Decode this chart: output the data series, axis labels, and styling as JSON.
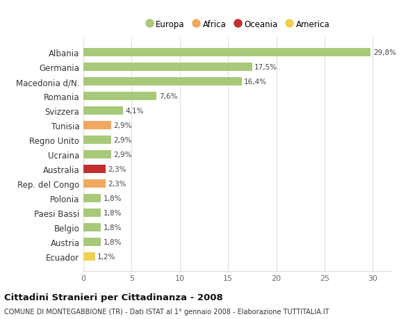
{
  "categories": [
    "Albania",
    "Germania",
    "Macedonia d/N.",
    "Romania",
    "Svizzera",
    "Tunisia",
    "Regno Unito",
    "Ucraina",
    "Australia",
    "Rep. del Congo",
    "Polonia",
    "Paesi Bassi",
    "Belgio",
    "Austria",
    "Ecuador"
  ],
  "values": [
    29.8,
    17.5,
    16.4,
    7.6,
    4.1,
    2.9,
    2.9,
    2.9,
    2.3,
    2.3,
    1.8,
    1.8,
    1.8,
    1.8,
    1.2
  ],
  "labels": [
    "29,8%",
    "17,5%",
    "16,4%",
    "7,6%",
    "4,1%",
    "2,9%",
    "2,9%",
    "2,9%",
    "2,3%",
    "2,3%",
    "1,8%",
    "1,8%",
    "1,8%",
    "1,8%",
    "1,2%"
  ],
  "colors": [
    "#a8c87a",
    "#a8c87a",
    "#a8c87a",
    "#a8c87a",
    "#a8c87a",
    "#f0a860",
    "#a8c87a",
    "#a8c87a",
    "#c03030",
    "#f0a860",
    "#a8c87a",
    "#a8c87a",
    "#a8c87a",
    "#a8c87a",
    "#f0d050"
  ],
  "legend": [
    {
      "label": "Europa",
      "color": "#a8c87a"
    },
    {
      "label": "Africa",
      "color": "#f0a860"
    },
    {
      "label": "Oceania",
      "color": "#c03030"
    },
    {
      "label": "America",
      "color": "#f0d050"
    }
  ],
  "xlim": [
    0,
    32
  ],
  "xticks": [
    0,
    5,
    10,
    15,
    20,
    25,
    30
  ],
  "title": "Cittadini Stranieri per Cittadinanza - 2008",
  "subtitle": "COMUNE DI MONTEGABBIONE (TR) - Dati ISTAT al 1° gennaio 2008 - Elaborazione TUTTITALIA.IT",
  "background_color": "#ffffff",
  "grid_color": "#dddddd",
  "bar_height": 0.55
}
